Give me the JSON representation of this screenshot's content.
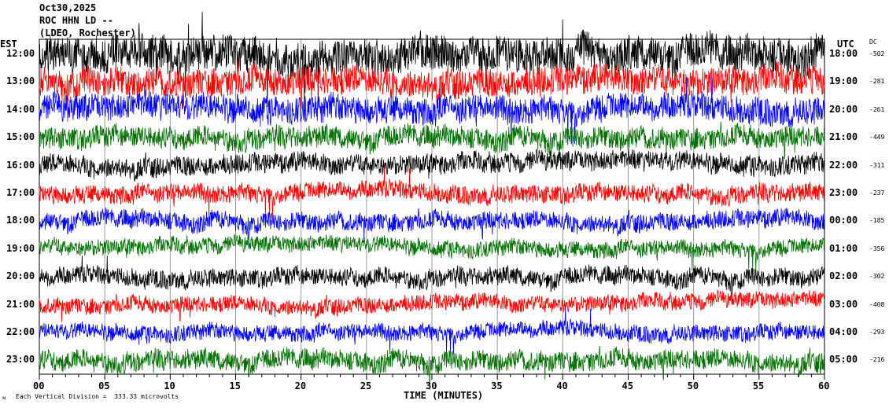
{
  "header": {
    "date": "Oct30,2025",
    "station": "ROC HHN LD --",
    "network": "(LDEO, Rochester)"
  },
  "left_tz": "EST",
  "right_tz": "UTC",
  "dc_label": "DC",
  "footer": {
    "scale_icon": "scale-icon",
    "scale_text": "Each Vertical Division =  333.33 microvolts"
  },
  "chart_data": {
    "type": "line",
    "title": "ROC HHN LD -- (LDEO, Rochester) Oct30,2025",
    "xlabel": "TIME (MINUTES)",
    "xlim": [
      0,
      60
    ],
    "xticks": [
      "00",
      "05",
      "10",
      "15",
      "20",
      "25",
      "30",
      "35",
      "40",
      "45",
      "50",
      "55",
      "60"
    ],
    "rows": [
      {
        "est": "12:00",
        "utc": "18:00",
        "dc": "-502",
        "color": "#000000",
        "noise": 1.0
      },
      {
        "est": "13:00",
        "utc": "19:00",
        "dc": "-281",
        "color": "#ff0000",
        "noise": 0.8
      },
      {
        "est": "14:00",
        "utc": "20:00",
        "dc": "-261",
        "color": "#0000ff",
        "noise": 0.75
      },
      {
        "est": "15:00",
        "utc": "21:00",
        "dc": "-449",
        "color": "#007000",
        "noise": 0.6
      },
      {
        "est": "16:00",
        "utc": "22:00",
        "dc": "-311",
        "color": "#000000",
        "noise": 0.55
      },
      {
        "est": "17:00",
        "utc": "23:00",
        "dc": "-237",
        "color": "#ff0000",
        "noise": 0.5
      },
      {
        "est": "18:00",
        "utc": "00:00",
        "dc": "-185",
        "color": "#0000ff",
        "noise": 0.5
      },
      {
        "est": "19:00",
        "utc": "01:00",
        "dc": "-356",
        "color": "#007000",
        "noise": 0.45
      },
      {
        "est": "20:00",
        "utc": "02:00",
        "dc": "-302",
        "color": "#000000",
        "noise": 0.5
      },
      {
        "est": "21:00",
        "utc": "03:00",
        "dc": "-408",
        "color": "#ff0000",
        "noise": 0.45
      },
      {
        "est": "22:00",
        "utc": "04:00",
        "dc": "-293",
        "color": "#0000ff",
        "noise": 0.45
      },
      {
        "est": "23:00",
        "utc": "05:00",
        "dc": "-216",
        "color": "#007000",
        "noise": 0.55
      }
    ]
  }
}
